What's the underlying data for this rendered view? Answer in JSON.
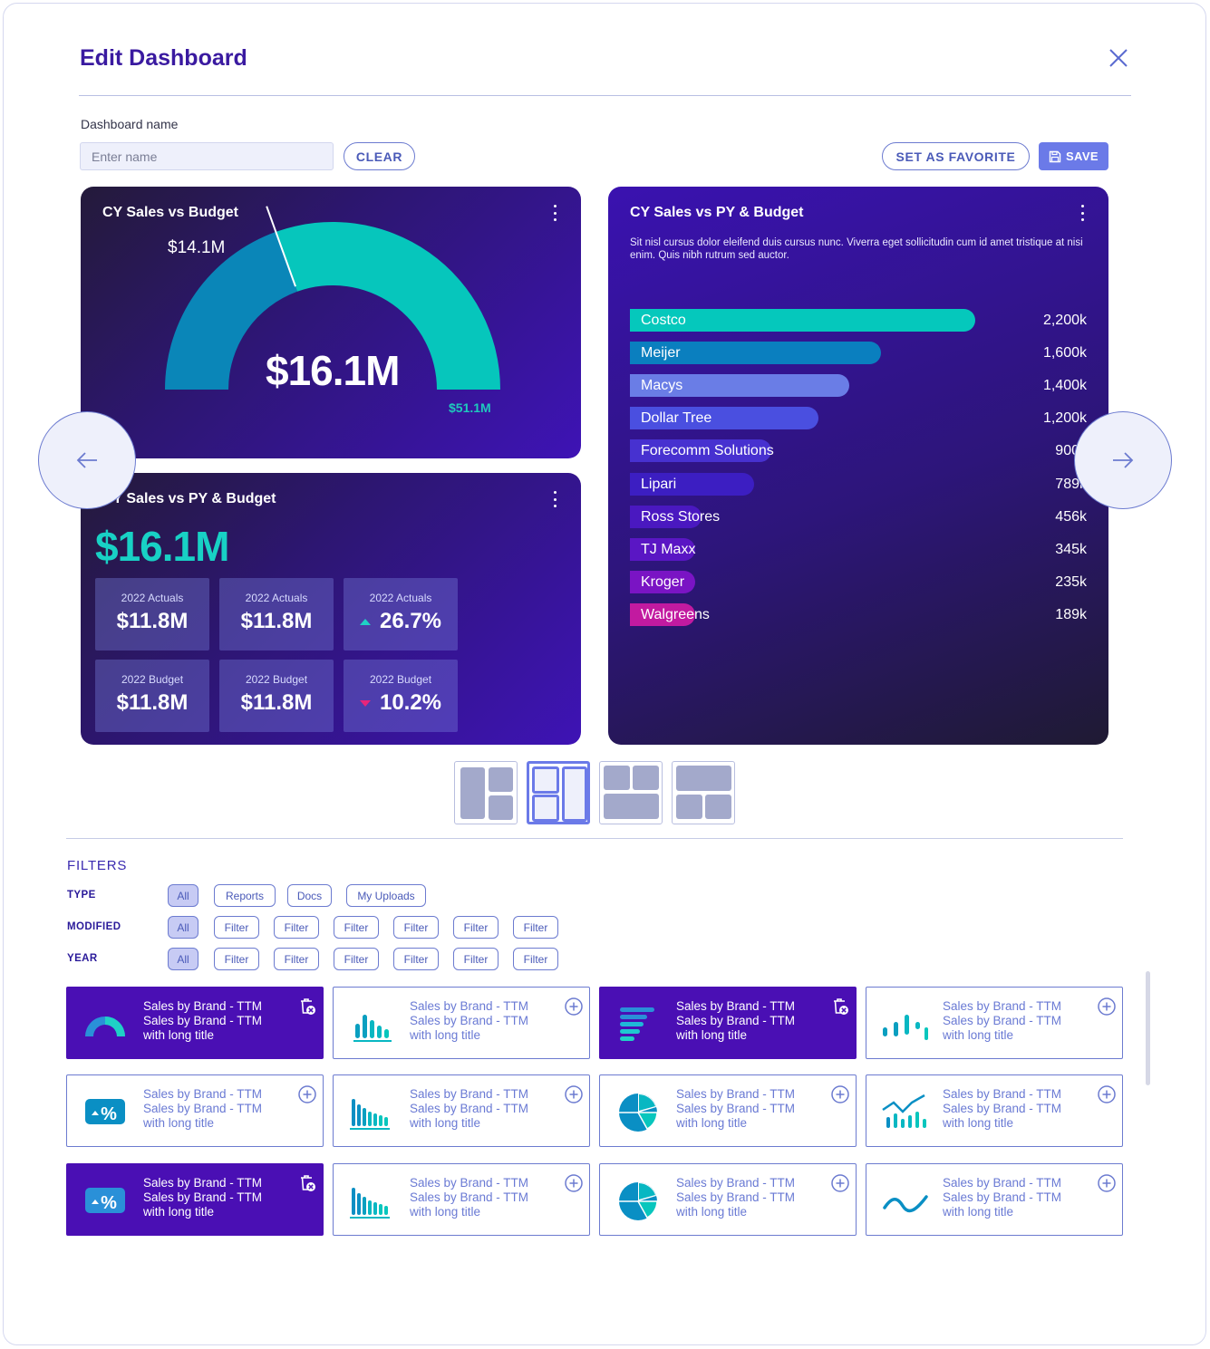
{
  "dialog": {
    "title": "Edit Dashboard",
    "name_label": "Dashboard name",
    "name_placeholder": "Enter name",
    "name_value": "",
    "clear_label": "CLEAR",
    "favorite_label": "SET AS FAVORITE",
    "save_label": "SAVE"
  },
  "gauge_card": {
    "title": "CY Sales vs Budget",
    "value": "$16.1M",
    "marker_label": "$14.1M",
    "max_label": "$51.1M",
    "colors": {
      "base": "#0a86b8",
      "fill": "#06c6bc"
    }
  },
  "kpi_card": {
    "title": "CY Sales vs PY & Budget",
    "value": "$16.1M",
    "tiles": [
      {
        "label": "2022 Actuals",
        "value": "$11.8M",
        "trend": ""
      },
      {
        "label": "2022 Actuals",
        "value": "$11.8M",
        "trend": ""
      },
      {
        "label": "2022 Actuals",
        "value": "26.7%",
        "trend": "up"
      },
      {
        "label": "2022 Budget",
        "value": "$11.8M",
        "trend": ""
      },
      {
        "label": "2022 Budget",
        "value": "$11.8M",
        "trend": ""
      },
      {
        "label": "2022 Budget",
        "value": "10.2%",
        "trend": "down"
      }
    ]
  },
  "bars_card": {
    "title": "CY Sales vs PY & Budget",
    "description": "Sit nisl cursus dolor eleifend duis cursus nunc. Viverra eget sollicitudin cum id amet tristique at nisi enim. Quis nibh rutrum sed auctor."
  },
  "chart_data": {
    "type": "bar",
    "orientation": "horizontal",
    "categories": [
      "Costco",
      "Meijer",
      "Macys",
      "Dollar Tree",
      "Forecomm Solutions",
      "Lipari",
      "Ross Stores",
      "TJ Maxx",
      "Kroger",
      "Walgreens"
    ],
    "values": [
      2200,
      1600,
      1400,
      1200,
      900,
      789,
      456,
      345,
      235,
      189
    ],
    "value_labels": [
      "2,200k",
      "1,600k",
      "1,400k",
      "1,200k",
      "900k",
      "789k",
      "456k",
      "345k",
      "235k",
      "189k"
    ],
    "colors": [
      "#05c8bc",
      "#0a7fbf",
      "#6a7de6",
      "#4a4fe0",
      "#4731d0",
      "#3c1ec2",
      "#4a18c0",
      "#5a16c4",
      "#7a14c4",
      "#c21aa0"
    ]
  },
  "layouts": {
    "options": [
      "layout-1",
      "layout-2",
      "layout-3",
      "layout-4"
    ],
    "selected": 1
  },
  "filters": {
    "title": "FILTERS",
    "rows": [
      {
        "label": "TYPE",
        "chips": [
          "All",
          "Reports",
          "Docs",
          "My Uploads"
        ]
      },
      {
        "label": "MODIFIED",
        "chips": [
          "All",
          "Filter",
          "Filter",
          "Filter",
          "Filter",
          "Filter",
          "Filter"
        ]
      },
      {
        "label": "YEAR",
        "chips": [
          "All",
          "Filter",
          "Filter",
          "Filter",
          "Filter",
          "Filter",
          "Filter"
        ]
      }
    ]
  },
  "widgets": [
    {
      "line1": "Sales by Brand - TTM",
      "line2": "Sales by Brand - TTM",
      "line3": "with long title",
      "icon": "gauge-icon",
      "selected": true
    },
    {
      "line1": "Sales by Brand - TTM",
      "line2": "Sales by Brand - TTM",
      "line3": "with long title",
      "icon": "bar-chart-icon",
      "selected": false
    },
    {
      "line1": "Sales by Brand - TTM",
      "line2": "Sales by Brand - TTM",
      "line3": "with long title",
      "icon": "horizontal-bar-icon",
      "selected": true
    },
    {
      "line1": "Sales by Brand - TTM",
      "line2": "Sales by Brand - TTM",
      "line3": "with long title",
      "icon": "dot-bar-icon",
      "selected": false
    },
    {
      "line1": "Sales by Brand - TTM",
      "line2": "Sales by Brand - TTM",
      "line3": "with long title",
      "icon": "kpi-percent-icon",
      "selected": false
    },
    {
      "line1": "Sales by Brand - TTM",
      "line2": "Sales by Brand - TTM",
      "line3": "with long title",
      "icon": "column-chart-icon",
      "selected": false
    },
    {
      "line1": "Sales by Brand - TTM",
      "line2": "Sales by Brand - TTM",
      "line3": "with long title",
      "icon": "pie-chart-icon",
      "selected": false
    },
    {
      "line1": "Sales by Brand - TTM",
      "line2": "Sales by Brand - TTM",
      "line3": "with long title",
      "icon": "combo-chart-icon",
      "selected": false
    },
    {
      "line1": "Sales by Brand - TTM",
      "line2": "Sales by Brand - TTM",
      "line3": "with long title",
      "icon": "kpi-percent-icon",
      "selected": true
    },
    {
      "line1": "Sales by Brand - TTM",
      "line2": "Sales by Brand - TTM",
      "line3": "with long title",
      "icon": "column-chart-icon",
      "selected": false
    },
    {
      "line1": "Sales by Brand - TTM",
      "line2": "Sales by Brand - TTM",
      "line3": "with long title",
      "icon": "pie-chart-icon",
      "selected": false
    },
    {
      "line1": "Sales by Brand - TTM",
      "line2": "Sales by Brand - TTM",
      "line3": "with long title",
      "icon": "line-chart-icon",
      "selected": false
    }
  ]
}
